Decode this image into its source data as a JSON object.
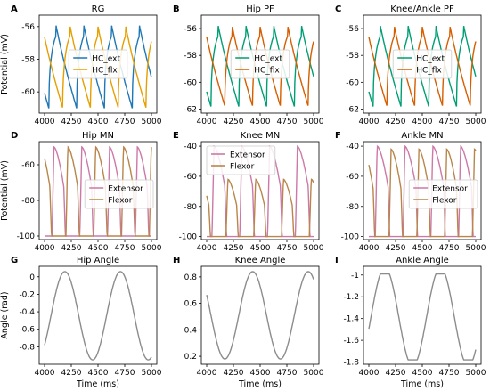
{
  "figure": {
    "panels": [
      {
        "letter": "A",
        "title": "RG",
        "ylabel": "Potential (mV)",
        "xlabel": ""
      },
      {
        "letter": "B",
        "title": "Hip PF",
        "ylabel": "",
        "xlabel": ""
      },
      {
        "letter": "C",
        "title": "Knee/Ankle PF",
        "ylabel": "",
        "xlabel": ""
      },
      {
        "letter": "D",
        "title": "Hip MN",
        "ylabel": "Potential (mV)",
        "xlabel": ""
      },
      {
        "letter": "E",
        "title": "Knee MN",
        "ylabel": "",
        "xlabel": ""
      },
      {
        "letter": "F",
        "title": "Ankle MN",
        "ylabel": "",
        "xlabel": ""
      },
      {
        "letter": "G",
        "title": "Hip Angle",
        "ylabel": "Angle (rad)",
        "xlabel": "Time (ms)"
      },
      {
        "letter": "H",
        "title": "Knee Angle",
        "ylabel": "",
        "xlabel": "Time (ms)"
      },
      {
        "letter": "I",
        "title": "Ankle Angle",
        "ylabel": "",
        "xlabel": "Time (ms)"
      }
    ]
  },
  "chart_data": [
    {
      "type": "line",
      "title": "RG",
      "xlabel": "",
      "ylabel": "Potential (mV)",
      "xlim": [
        3950,
        5050
      ],
      "ylim": [
        -61.3,
        -55.3
      ],
      "xticks": [
        4000,
        4250,
        4500,
        4750,
        5000
      ],
      "yticks": [
        -56,
        -58,
        -60
      ],
      "grid": false,
      "legend": "center",
      "series": [
        {
          "name": "HC_ext",
          "color": "#1f77b4",
          "kind": "neuron",
          "min": -61.0,
          "max": -55.6,
          "period": 260,
          "phase": 4040
        },
        {
          "name": "HC_flx",
          "color": "#e69f00",
          "kind": "neuron",
          "min": -61.0,
          "max": -55.6,
          "period": 260,
          "phase": 4170
        }
      ]
    },
    {
      "type": "line",
      "title": "Hip PF",
      "xlabel": "",
      "ylabel": "",
      "xlim": [
        3950,
        5050
      ],
      "ylim": [
        -62.3,
        -55.0
      ],
      "xticks": [
        4000,
        4250,
        4500,
        4750,
        5000
      ],
      "yticks": [
        -56,
        -58,
        -60,
        -62
      ],
      "grid": false,
      "legend": "center",
      "series": [
        {
          "name": "HC_ext",
          "color": "#009e73",
          "kind": "neuron",
          "min": -61.8,
          "max": -55.4,
          "period": 260,
          "phase": 4040
        },
        {
          "name": "HC_flx",
          "color": "#d55e00",
          "kind": "neuron",
          "min": -61.8,
          "max": -55.4,
          "period": 260,
          "phase": 4170
        }
      ]
    },
    {
      "type": "line",
      "title": "Knee/Ankle PF",
      "xlabel": "",
      "ylabel": "",
      "xlim": [
        3950,
        5050
      ],
      "ylim": [
        -62.3,
        -55.0
      ],
      "xticks": [
        4000,
        4250,
        4500,
        4750,
        5000
      ],
      "yticks": [
        -56,
        -58,
        -60,
        -62
      ],
      "grid": false,
      "legend": "center",
      "series": [
        {
          "name": "HC_ext",
          "color": "#009e73",
          "kind": "neuron",
          "min": -61.8,
          "max": -55.4,
          "period": 260,
          "phase": 4040
        },
        {
          "name": "HC_flx",
          "color": "#d55e00",
          "kind": "neuron",
          "min": -61.8,
          "max": -55.4,
          "period": 260,
          "phase": 4170
        }
      ]
    },
    {
      "type": "line",
      "title": "Hip MN",
      "xlabel": "",
      "ylabel": "Potential (mV)",
      "xlim": [
        3950,
        5050
      ],
      "ylim": [
        -102,
        -47
      ],
      "xticks": [
        4000,
        4250,
        4500,
        4750,
        5000
      ],
      "yticks": [
        -60,
        -80,
        -100
      ],
      "grid": false,
      "legend": "center-right",
      "series": [
        {
          "name": "Extensor",
          "color": "#cc79a7",
          "kind": "mn",
          "base": -100,
          "peak": -50,
          "period": 260,
          "phase": 4070,
          "width": 110
        },
        {
          "name": "Flexor",
          "color": "#b8864b",
          "kind": "mn",
          "base": -100,
          "peak": -50,
          "period": 260,
          "phase": 4200,
          "width": 110
        }
      ]
    },
    {
      "type": "line",
      "title": "Knee MN",
      "xlabel": "",
      "ylabel": "",
      "xlim": [
        3950,
        5050
      ],
      "ylim": [
        -102,
        -37
      ],
      "xticks": [
        4000,
        4250,
        4500,
        4750,
        5000
      ],
      "yticks": [
        -40,
        -60,
        -80,
        -100
      ],
      "grid": false,
      "legend": "upper-left",
      "series": [
        {
          "name": "Extensor",
          "color": "#cc79a7",
          "kind": "mn",
          "base": -100,
          "peak": -40,
          "period": 260,
          "phase": 4050,
          "width": 120
        },
        {
          "name": "Flexor",
          "color": "#b8864b",
          "kind": "mn",
          "base": -100,
          "peak": -62,
          "period": 260,
          "phase": 4180,
          "width": 100
        }
      ]
    },
    {
      "type": "line",
      "title": "Ankle MN",
      "xlabel": "",
      "ylabel": "",
      "xlim": [
        3950,
        5050
      ],
      "ylim": [
        -102,
        -37
      ],
      "xticks": [
        4000,
        4250,
        4500,
        4750,
        5000
      ],
      "yticks": [
        -40,
        -60,
        -80,
        -100
      ],
      "grid": false,
      "legend": "center-right",
      "series": [
        {
          "name": "Extensor",
          "color": "#cc79a7",
          "kind": "mn",
          "base": -100,
          "peak": -40,
          "period": 260,
          "phase": 4060,
          "width": 120
        },
        {
          "name": "Flexor",
          "color": "#b8864b",
          "kind": "mn",
          "base": -100,
          "peak": -42,
          "period": 260,
          "phase": 4190,
          "width": 110
        }
      ]
    },
    {
      "type": "line",
      "title": "Hip Angle",
      "xlabel": "Time (ms)",
      "ylabel": "Angle (rad)",
      "xlim": [
        3950,
        5050
      ],
      "ylim": [
        -1.0,
        0.12
      ],
      "xticks": [
        4000,
        4250,
        4500,
        4750,
        5000
      ],
      "yticks": [
        0.0,
        -0.2,
        -0.4,
        -0.6,
        -0.8
      ],
      "grid": false,
      "legend": "none",
      "series": [
        {
          "name": "",
          "color": "#8c8c8c",
          "kind": "angle",
          "min": -0.95,
          "max": 0.06,
          "period": 520,
          "peak": 4190
        }
      ]
    },
    {
      "type": "line",
      "title": "Knee Angle",
      "xlabel": "Time (ms)",
      "ylabel": "",
      "xlim": [
        3950,
        5050
      ],
      "ylim": [
        0.14,
        0.88
      ],
      "xticks": [
        4000,
        4250,
        4500,
        4750,
        5000
      ],
      "yticks": [
        0.8,
        0.6,
        0.4,
        0.2
      ],
      "grid": false,
      "legend": "none",
      "series": [
        {
          "name": "",
          "color": "#8c8c8c",
          "kind": "angle",
          "min": 0.18,
          "max": 0.84,
          "period": 520,
          "peak": 4430
        }
      ]
    },
    {
      "type": "line",
      "title": "Ankle Angle",
      "xlabel": "Time (ms)",
      "ylabel": "",
      "xlim": [
        3950,
        5050
      ],
      "ylim": [
        -1.82,
        -0.92
      ],
      "xticks": [
        4000,
        4250,
        4500,
        4750,
        5000
      ],
      "yticks": [
        -1.0,
        -1.2,
        -1.4,
        -1.6,
        -1.8
      ],
      "grid": false,
      "legend": "none",
      "series": [
        {
          "name": "",
          "color": "#8c8c8c",
          "kind": "angle",
          "min": -1.78,
          "max": -0.99,
          "period": 520,
          "peak": 4150,
          "flat": true
        }
      ]
    }
  ]
}
